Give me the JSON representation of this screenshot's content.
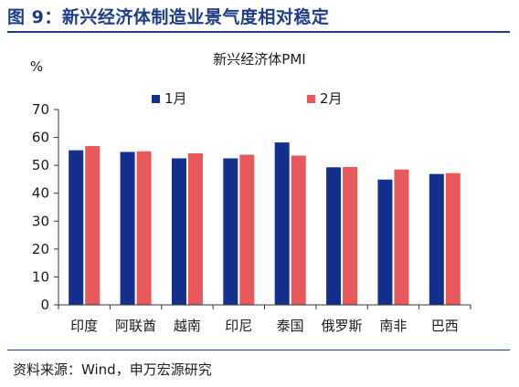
{
  "figure": {
    "title": "图 9：新兴经济体制造业景气度相对稳定",
    "source": "资料来源：Wind，申万宏源研究"
  },
  "chart_data": {
    "type": "bar",
    "title": "新兴经济体PMI",
    "ylabel": "%",
    "xlabel": "",
    "ylim": [
      0,
      70
    ],
    "yticks": [
      0,
      10,
      20,
      30,
      40,
      50,
      60,
      70
    ],
    "categories": [
      "印度",
      "阿联酋",
      "越南",
      "印尼",
      "泰国",
      "俄罗斯",
      "南非",
      "巴西"
    ],
    "series": [
      {
        "name": "1月",
        "color": "#12308c",
        "values": [
          55.4,
          54.8,
          52.5,
          52.5,
          58.2,
          49.3,
          44.9,
          46.9
        ]
      },
      {
        "name": "2月",
        "color": "#e8595c",
        "values": [
          56.9,
          55.0,
          54.3,
          53.8,
          53.5,
          49.4,
          48.5,
          47.2
        ]
      }
    ],
    "grid": false,
    "legend": "top-center"
  }
}
